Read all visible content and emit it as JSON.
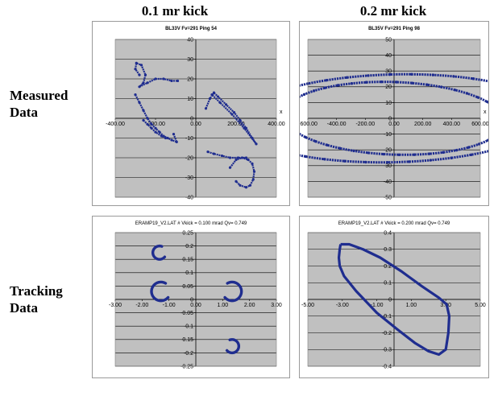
{
  "column_titles": [
    "0.1 mr kick",
    "0.2 mr kick"
  ],
  "row_labels": {
    "measured": [
      "Measured",
      "Data"
    ],
    "tracking": [
      "Tracking",
      "Data"
    ]
  },
  "colors": {
    "plot_bg": "#c0c0c0",
    "data": "#1f2d8f",
    "grid": "#000000",
    "frame": "#9a9a9a"
  },
  "chart_data": [
    {
      "type": "scatter",
      "title": "BL33V  Fv=291  Ping 54",
      "xlabel": "x",
      "ylabel": "",
      "xlim": [
        -400,
        400
      ],
      "ylim": [
        -40,
        40
      ],
      "xticks": [
        -400,
        -200,
        0,
        200,
        400
      ],
      "xtick_labels": [
        "-400.00",
        "-200.00",
        "0.00",
        "200.00",
        "400.00"
      ],
      "yticks": [
        -40,
        -30,
        -20,
        -10,
        0,
        10,
        20,
        30,
        40
      ],
      "ytick_labels": [
        "-40",
        "-30",
        "-20",
        "-10",
        "0",
        "10",
        "20",
        "30",
        "40"
      ],
      "grid": true,
      "groups": [
        {
          "x": [
            -280,
            -300,
            -295,
            -270,
            -250,
            -260,
            -280,
            -240,
            -200,
            -160,
            -120,
            -90
          ],
          "y": [
            22,
            25,
            28,
            27,
            22,
            18,
            16,
            18,
            20,
            20,
            19,
            19
          ]
        },
        {
          "x": [
            -300,
            -280,
            -260,
            -240,
            -220,
            -200,
            -180,
            -160,
            -140,
            -120,
            -95,
            -110
          ],
          "y": [
            12,
            8,
            4,
            0,
            -3,
            -5,
            -7,
            -9,
            -10,
            -11,
            -12,
            -8
          ]
        },
        {
          "x": [
            -260,
            -240,
            -220,
            -200,
            -170,
            -150
          ],
          "y": [
            -1,
            -3,
            -5,
            -7,
            -9,
            -10
          ]
        },
        {
          "x": [
            50,
            70,
            90,
            110,
            150,
            190,
            220,
            250,
            280,
            300,
            240,
            180,
            120,
            80
          ],
          "y": [
            5,
            10,
            13,
            11,
            7,
            3,
            -1,
            -5,
            -10,
            -13,
            -5,
            2,
            8,
            12
          ]
        },
        {
          "x": [
            60,
            90,
            130,
            170,
            210,
            250
          ],
          "y": [
            -17,
            -18,
            -19,
            -20,
            -20,
            -20
          ]
        },
        {
          "x": [
            170,
            200,
            230,
            260,
            280,
            290,
            285,
            270,
            250,
            220,
            200
          ],
          "y": [
            -25,
            -21,
            -20,
            -21,
            -23,
            -27,
            -31,
            -34,
            -35,
            -34,
            -32
          ]
        }
      ]
    },
    {
      "type": "scatter",
      "title": "BL35V  Fv=291  Ping 98",
      "xlabel": "x",
      "ylabel": "",
      "xlim": [
        -600,
        600
      ],
      "ylim": [
        -50,
        50
      ],
      "xticks": [
        -600,
        -400,
        -200,
        0,
        200,
        400,
        600
      ],
      "xtick_labels": [
        "-600.00",
        "-400.00",
        "-200.00",
        "0.00",
        "200.00",
        "400.00",
        "600.00"
      ],
      "yticks": [
        -50,
        -40,
        -30,
        -20,
        -10,
        0,
        10,
        20,
        30,
        40,
        50
      ],
      "ytick_labels": [
        "-50",
        "-40",
        "-30",
        "-20",
        "-10",
        "0",
        "10",
        "20",
        "30",
        "40",
        "50"
      ],
      "grid": true,
      "ellipses": [
        {
          "cx": 0,
          "cy": 0,
          "a": 500,
          "b": 140,
          "tilt": -0.86,
          "angle_deg": -37
        },
        {
          "cx": 0,
          "cy": 0,
          "a": 430,
          "b": 95,
          "tilt": -0.86,
          "angle_deg": -37
        }
      ]
    },
    {
      "type": "scatter",
      "title": "ERAMP19_V2.LAT   # Vkick = 0.100 mrad Qv= 0.749",
      "xlabel": "",
      "ylabel": "",
      "xlim": [
        -3,
        3
      ],
      "ylim": [
        -0.25,
        0.25
      ],
      "xticks": [
        -3,
        -2,
        -1,
        0,
        1,
        2,
        3
      ],
      "xtick_labels": [
        "-3.00",
        "-2.00",
        "-1.00",
        "0.00",
        "1.00",
        "2.00",
        "3.00"
      ],
      "yticks": [
        -0.25,
        -0.2,
        -0.15,
        -0.1,
        -0.05,
        0,
        0.05,
        0.1,
        0.15,
        0.2,
        0.25
      ],
      "ytick_labels": [
        "-0.25",
        "-0.2",
        "-0.15",
        "-0.1",
        "-0.05",
        "0",
        "0.05",
        "0.1",
        "0.15",
        "0.2",
        "0.25"
      ],
      "grid": true,
      "arcs": [
        {
          "cx": -1.35,
          "cy": 0.175,
          "rx": 0.25,
          "ry": 0.025,
          "from_deg": 70,
          "to_deg": 320
        },
        {
          "cx": -1.3,
          "cy": 0.03,
          "rx": 0.35,
          "ry": 0.035,
          "from_deg": 60,
          "to_deg": 320
        },
        {
          "cx": 1.35,
          "cy": 0.03,
          "rx": 0.35,
          "ry": 0.035,
          "from_deg": -140,
          "to_deg": 120
        },
        {
          "cx": 1.35,
          "cy": -0.175,
          "rx": 0.25,
          "ry": 0.025,
          "from_deg": -140,
          "to_deg": 110
        }
      ]
    },
    {
      "type": "line",
      "title": "ERAMP19_V2.LAT   # Vkick = 0.200 mrad Qv= 0.749",
      "xlabel": "",
      "ylabel": "",
      "xlim": [
        -5,
        5
      ],
      "ylim": [
        -0.4,
        0.4
      ],
      "xticks": [
        -5,
        -3,
        -1,
        1,
        3,
        5
      ],
      "xtick_labels": [
        "-5.00",
        "-3.00",
        "-1.00",
        "1.00",
        "3.00",
        "5.00"
      ],
      "yticks": [
        -0.4,
        -0.3,
        -0.2,
        -0.1,
        0,
        0.1,
        0.2,
        0.3,
        0.4
      ],
      "ytick_labels": [
        "-0.4",
        "-0.3",
        "-0.2",
        "-0.1",
        "0",
        "0.1",
        "0.2",
        "0.3",
        "0.4"
      ],
      "grid": true,
      "x": [
        -3.1,
        -2.6,
        -1.8,
        -0.8,
        0.4,
        1.6,
        2.6,
        3.05,
        3.2,
        3.15,
        3.0,
        2.6,
        2.0,
        1.2,
        0.2,
        -1.0,
        -2.2,
        -2.9,
        -3.15,
        -3.2,
        -3.15,
        -3.1
      ],
      "y": [
        0.33,
        0.33,
        0.3,
        0.25,
        0.17,
        0.08,
        0.01,
        -0.03,
        -0.1,
        -0.2,
        -0.3,
        -0.33,
        -0.31,
        -0.26,
        -0.18,
        -0.08,
        0.05,
        0.14,
        0.2,
        0.25,
        0.3,
        0.33
      ]
    }
  ]
}
